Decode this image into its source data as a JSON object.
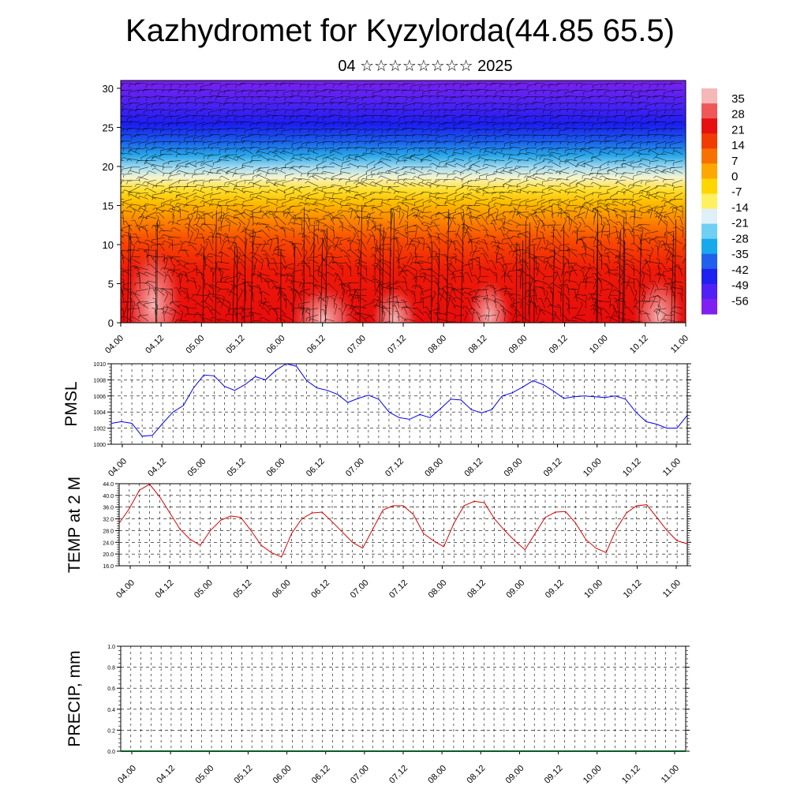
{
  "title": "Kazhydromet for Kyzylorda(44.85 65.5)",
  "subtitle": "04 ☆☆☆☆☆☆☆☆ 2025",
  "chart_data": [
    {
      "type": "heatmap",
      "ylim": [
        0,
        31
      ],
      "y_ticks": [
        "0",
        "5",
        "10",
        "15",
        "20",
        "25",
        "30"
      ],
      "x_ticks": [
        "04.00",
        "04.12",
        "05.00",
        "05.12",
        "06.00",
        "06.12",
        "07.00",
        "07.12",
        "08.00",
        "08.12",
        "09.00",
        "09.12",
        "10.00",
        "10.12",
        "11.00"
      ],
      "colorbar_labels": [
        "35",
        "28",
        "21",
        "14",
        "7",
        "0",
        "-7",
        "-14",
        "-21",
        "-28",
        "-35",
        "-42",
        "-49",
        "-56"
      ],
      "colorbar_colors": [
        "#f4b8b8",
        "#ee5858",
        "#e61010",
        "#f03c00",
        "#f87000",
        "#fca800",
        "#ffd600",
        "#fff060",
        "#e0f0f8",
        "#70d0f4",
        "#18a8ec",
        "#2060ec",
        "#2020f0",
        "#5020f4",
        "#8020f0"
      ]
    },
    {
      "type": "line",
      "ylabel": "PMSL",
      "ylim": [
        1000,
        1010
      ],
      "y_ticks": [
        "1000",
        "1002",
        "1004",
        "1006",
        "1008",
        "1010"
      ],
      "x_ticks": [
        "04.00",
        "04.12",
        "05.00",
        "05.12",
        "06.00",
        "06.12",
        "07.00",
        "07.12",
        "08.00",
        "08.12",
        "09.00",
        "09.12",
        "10.00",
        "10.12",
        "11.00"
      ],
      "x": [
        0,
        3,
        6,
        9,
        12,
        15,
        18,
        21,
        24,
        27,
        30,
        33,
        36,
        39,
        42,
        45,
        48,
        51,
        54,
        57,
        60,
        63,
        66,
        69,
        72,
        75,
        78,
        81,
        84,
        87,
        90,
        93,
        96,
        99,
        102,
        105,
        108,
        111,
        114,
        117,
        120,
        123,
        126,
        129,
        132,
        135,
        138,
        141,
        144,
        147,
        150,
        153,
        156,
        159,
        162,
        165,
        168
      ],
      "series": [
        {
          "color": "#0000ee",
          "values": [
            1002.6,
            1002.8,
            1002.6,
            1001.0,
            1001.1,
            1002.6,
            1004.0,
            1004.8,
            1007.0,
            1008.6,
            1008.5,
            1007.2,
            1006.7,
            1007.4,
            1008.4,
            1008.0,
            1009.2,
            1010.0,
            1009.7,
            1007.9,
            1007.0,
            1006.7,
            1006.2,
            1005.2,
            1005.7,
            1006.1,
            1005.6,
            1004.0,
            1003.3,
            1003.1,
            1003.7,
            1003.3,
            1004.4,
            1005.6,
            1005.5,
            1004.3,
            1003.9,
            1004.3,
            1006.0,
            1006.4,
            1007.1,
            1007.9,
            1007.4,
            1006.6,
            1005.7,
            1005.9,
            1006.0,
            1005.9,
            1005.8,
            1006.0,
            1005.6,
            1004.0,
            1002.8,
            1002.5,
            1002.0,
            1002.0,
            1003.6
          ]
        }
      ]
    },
    {
      "type": "line",
      "ylabel": "TEMP at 2 M",
      "ylim": [
        16,
        44
      ],
      "y_ticks": [
        "16.0",
        "20.0",
        "24.0",
        "28.0",
        "32.0",
        "36.0",
        "40.0",
        "44.0"
      ],
      "x_ticks": [
        "04.00",
        "04.12",
        "05.00",
        "05.12",
        "06.00",
        "06.12",
        "07.00",
        "07.12",
        "08.00",
        "08.12",
        "09.00",
        "09.12",
        "10.00",
        "10.12",
        "11.00"
      ],
      "x": [
        0,
        3,
        6,
        9,
        12,
        15,
        18,
        21,
        24,
        27,
        30,
        33,
        36,
        39,
        42,
        45,
        48,
        51,
        54,
        57,
        60,
        63,
        66,
        69,
        72,
        75,
        78,
        81,
        84,
        87,
        90,
        93,
        96,
        99,
        102,
        105,
        108,
        111,
        114,
        117,
        120,
        123,
        126,
        129,
        132,
        135,
        138,
        141,
        144,
        147,
        150,
        153,
        156,
        159,
        162,
        165,
        168
      ],
      "series": [
        {
          "color": "#dd0000",
          "values": [
            30.5,
            35.5,
            41.8,
            43.8,
            39.5,
            34.0,
            28.5,
            25.0,
            23.0,
            28.0,
            31.5,
            33.0,
            32.5,
            28.0,
            23.0,
            20.5,
            19.0,
            27.0,
            32.0,
            34.0,
            34.3,
            31.0,
            27.5,
            24.0,
            22.0,
            28.5,
            35.0,
            36.5,
            36.5,
            33.5,
            27.0,
            24.5,
            22.5,
            30.5,
            36.5,
            38.0,
            37.5,
            32.0,
            28.0,
            24.5,
            21.5,
            27.0,
            32.5,
            34.3,
            34.5,
            30.5,
            25.0,
            22.0,
            20.5,
            28.5,
            34.0,
            36.5,
            36.8,
            32.5,
            28.0,
            24.5,
            23.5
          ]
        }
      ]
    },
    {
      "type": "bar",
      "ylabel": "PRECIP, mm",
      "ylim": [
        0,
        1
      ],
      "y_ticks": [
        "0.0",
        "0.2",
        "0.4",
        "0.6",
        "0.8",
        "1.0"
      ],
      "x_ticks": [
        "04.00",
        "04.12",
        "05.00",
        "05.12",
        "06.00",
        "06.12",
        "07.00",
        "07.12",
        "08.00",
        "08.12",
        "09.00",
        "09.12",
        "10.00",
        "10.12",
        "11.00"
      ],
      "values": [],
      "series": []
    }
  ]
}
